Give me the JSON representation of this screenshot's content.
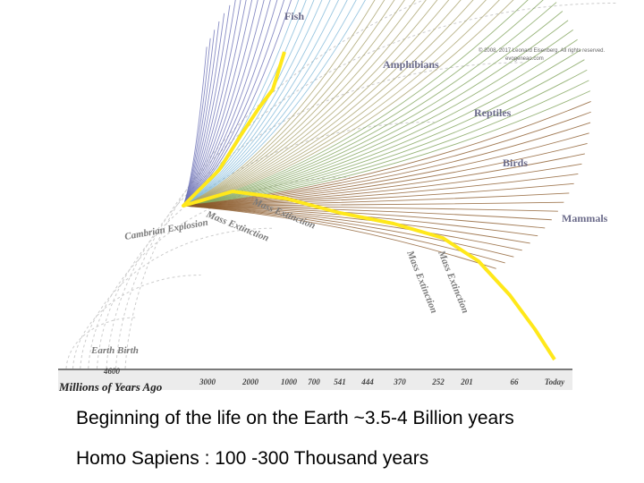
{
  "diagram": {
    "groups": [
      "Fish",
      "Amphibians",
      "Reptiles",
      "Birds",
      "Mammals"
    ],
    "copyright": [
      "© 2008, 2017 Leonard Eisenberg. All rights reserved.",
      "evogeneao.com"
    ],
    "events": [
      "Mass Extinction",
      "Cambrian Explosion",
      "Mass Extinction",
      "Mass Extinction",
      "Mass Extinction",
      "Earth Birth"
    ],
    "axis_title": "Millions of Years Ago",
    "ticks": [
      "4600",
      "3000",
      "2000",
      "1000",
      "700",
      "541",
      "444",
      "370",
      "252",
      "201",
      "66",
      "Today"
    ]
  },
  "caption": [
    "Beginning of the life on the Earth ~3.5-4 Billion years",
    "Homo Sapiens : 100 -300 Thousand years"
  ]
}
